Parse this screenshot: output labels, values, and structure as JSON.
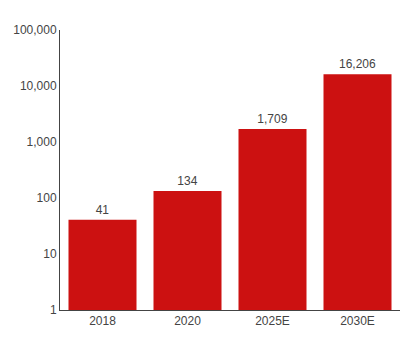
{
  "chart_data": {
    "type": "bar",
    "categories": [
      "2018",
      "2020",
      "2025E",
      "2030E"
    ],
    "values": [
      41,
      134,
      1709,
      16206
    ],
    "value_labels": [
      "41",
      "134",
      "1,709",
      "16,206"
    ],
    "data_labels": true,
    "color": "#cc1111",
    "log": "y",
    "ylim": [
      1,
      100000
    ],
    "yticks": [
      1,
      10,
      100,
      {
        "value": 1000,
        "label": "1,000"
      },
      {
        "value": 10000,
        "label": "10,000"
      },
      {
        "value": 100000,
        "label": "100,000"
      }
    ],
    "grid": false
  }
}
